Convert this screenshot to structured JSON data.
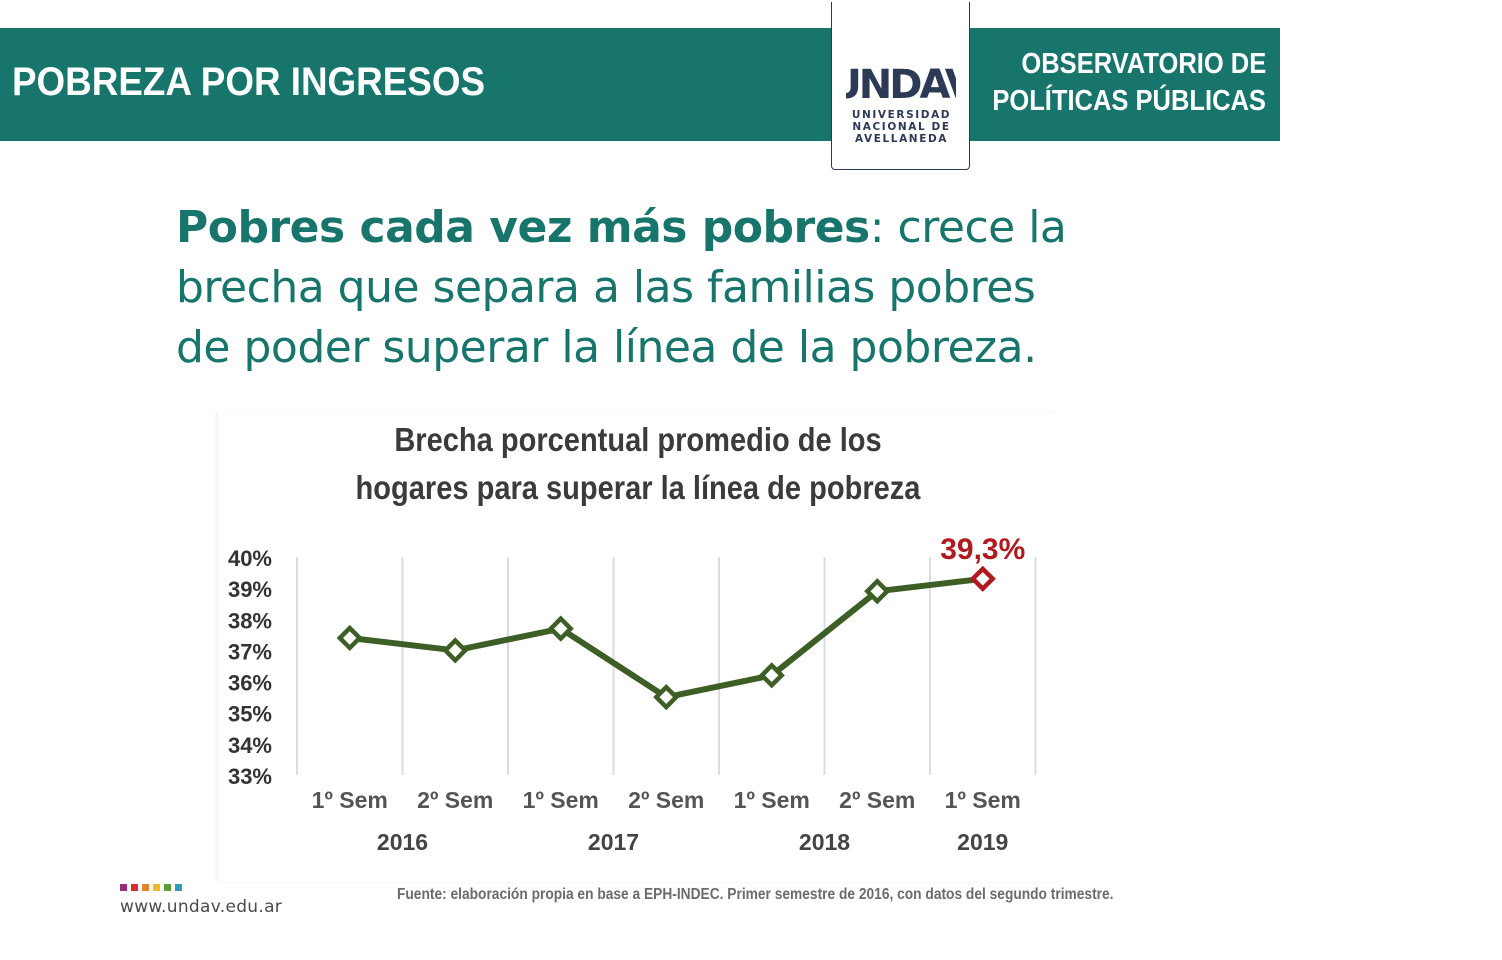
{
  "header": {
    "title": "POBREZA POR INGRESOS",
    "logo_text": "UNDAV",
    "logo_sub": [
      "UNIVERSIDAD",
      "NACIONAL DE",
      "AVELLANEDA"
    ],
    "observatory_lines": [
      "OBSERVATORIO DE",
      "POLÍTICAS PÚBLICAS"
    ],
    "band_color": "#17756c",
    "logo_color": "#2d3a56"
  },
  "headline": {
    "bold": "Pobres cada vez más pobres",
    "rest_line1": ": crece la",
    "line2": "brecha que separa a las familias pobres",
    "line3": "de poder superar la línea de la pobreza."
  },
  "chart_data": {
    "type": "line",
    "title_lines": [
      "Brecha porcentual promedio de los",
      "hogares para superar la línea de pobreza"
    ],
    "categories": [
      "1º Sem",
      "2º Sem",
      "1º Sem",
      "2º Sem",
      "1º Sem",
      "2º Sem",
      "1º Sem"
    ],
    "year_labels": [
      {
        "label": "2016",
        "span": [
          0,
          1
        ]
      },
      {
        "label": "2017",
        "span": [
          2,
          3
        ]
      },
      {
        "label": "2018",
        "span": [
          4,
          5
        ]
      },
      {
        "label": "2019",
        "span": [
          6,
          6
        ]
      }
    ],
    "values": [
      37.4,
      37.0,
      37.7,
      35.5,
      36.2,
      38.9,
      39.3
    ],
    "ylim": [
      33,
      40
    ],
    "yticks": [
      "33%",
      "34%",
      "35%",
      "36%",
      "37%",
      "38%",
      "39%",
      "40%"
    ],
    "grid": "vertical",
    "line_color": "#3d5e25",
    "highlight_color": "#b0191e",
    "annotation": {
      "index": 6,
      "text": "39,3%"
    }
  },
  "footer": {
    "website": "www.undav.edu.ar",
    "source": "Fuente: elaboración propia en base a EPH-INDEC. Primer semestre de 2016, con datos del segundo trimestre.",
    "dot_colors": [
      "#9b2a7a",
      "#d2312f",
      "#e2862c",
      "#f0b82c",
      "#5a9e3a",
      "#2e9fb4"
    ]
  }
}
